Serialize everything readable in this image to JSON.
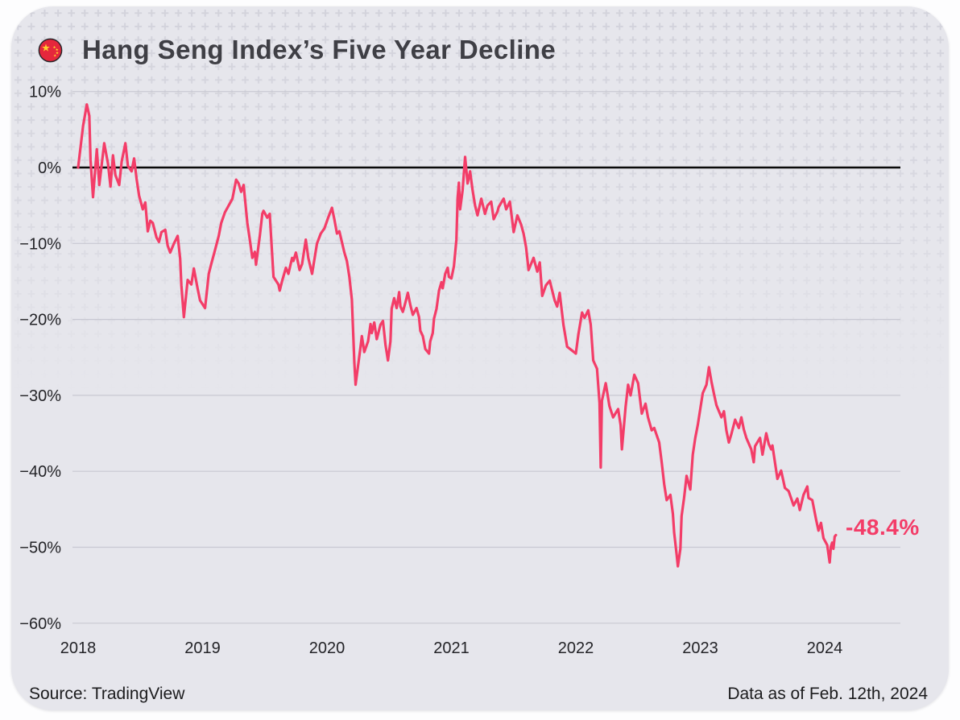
{
  "header": {
    "title": "Hang Seng Index’s Five Year Decline",
    "flag_icon": "china-flag"
  },
  "footer": {
    "source": "Source: TradingView",
    "as_of": "Data as of Feb. 12th, 2024"
  },
  "colors": {
    "line": "#f33d68",
    "zero_line": "#0a0a0a",
    "gridline": "#c8c8d2",
    "card_bg": "#e6e6ec",
    "pattern_cross": "#d2d2db",
    "title_text": "#3f3f45",
    "tick_text": "#232327",
    "flag_red": "#e5273c",
    "flag_gold": "#ffd12e"
  },
  "chart_data": {
    "type": "line",
    "title": "Hang Seng Index’s Five Year Decline",
    "xlim": [
      2017.94,
      2024.62
    ],
    "ylim": [
      -60,
      10
    ],
    "grid": true,
    "zero_line": true,
    "legend": "none",
    "end_label": "-48.4%",
    "yticks": [
      {
        "label": "10%",
        "value": 10
      },
      {
        "label": "0%",
        "value": 0
      },
      {
        "label": "−10%",
        "value": -10
      },
      {
        "label": "−20%",
        "value": -20
      },
      {
        "label": "−30%",
        "value": -30
      },
      {
        "label": "−40%",
        "value": -40
      },
      {
        "label": "−50%",
        "value": -50
      },
      {
        "label": "−60%",
        "value": -60
      }
    ],
    "xticks": [
      {
        "label": "2018",
        "value": 2018
      },
      {
        "label": "2019",
        "value": 2019
      },
      {
        "label": "2020",
        "value": 2020
      },
      {
        "label": "2021",
        "value": 2021
      },
      {
        "label": "2022",
        "value": 2022
      },
      {
        "label": "2023",
        "value": 2023
      },
      {
        "label": "2024",
        "value": 2024
      }
    ],
    "series": [
      {
        "name": "Hang Seng Index",
        "unit": "%",
        "points": [
          [
            2018.0,
            0.0
          ],
          [
            2018.04,
            5.5
          ],
          [
            2018.07,
            8.3
          ],
          [
            2018.09,
            6.8
          ],
          [
            2018.1,
            1.0
          ],
          [
            2018.12,
            -3.9
          ],
          [
            2018.15,
            2.4
          ],
          [
            2018.17,
            -2.3
          ],
          [
            2018.21,
            3.2
          ],
          [
            2018.24,
            0.5
          ],
          [
            2018.26,
            -2.5
          ],
          [
            2018.28,
            1.6
          ],
          [
            2018.3,
            -1.0
          ],
          [
            2018.33,
            -2.3
          ],
          [
            2018.35,
            0.8
          ],
          [
            2018.38,
            3.2
          ],
          [
            2018.4,
            0.2
          ],
          [
            2018.43,
            -0.5
          ],
          [
            2018.45,
            1.2
          ],
          [
            2018.47,
            -1.5
          ],
          [
            2018.49,
            -3.7
          ],
          [
            2018.52,
            -5.5
          ],
          [
            2018.54,
            -4.6
          ],
          [
            2018.56,
            -8.4
          ],
          [
            2018.58,
            -7.0
          ],
          [
            2018.6,
            -7.3
          ],
          [
            2018.63,
            -9.2
          ],
          [
            2018.65,
            -9.8
          ],
          [
            2018.67,
            -8.5
          ],
          [
            2018.7,
            -8.2
          ],
          [
            2018.72,
            -10.3
          ],
          [
            2018.74,
            -11.2
          ],
          [
            2018.77,
            -10.0
          ],
          [
            2018.8,
            -9.0
          ],
          [
            2018.82,
            -12.0
          ],
          [
            2018.83,
            -15.5
          ],
          [
            2018.85,
            -19.7
          ],
          [
            2018.88,
            -14.8
          ],
          [
            2018.91,
            -15.4
          ],
          [
            2018.93,
            -13.3
          ],
          [
            2018.96,
            -15.9
          ],
          [
            2018.98,
            -17.5
          ],
          [
            2019.02,
            -18.5
          ],
          [
            2019.04,
            -15.5
          ],
          [
            2019.05,
            -14.0
          ],
          [
            2019.07,
            -12.7
          ],
          [
            2019.1,
            -10.9
          ],
          [
            2019.13,
            -9.0
          ],
          [
            2019.15,
            -7.3
          ],
          [
            2019.18,
            -5.9
          ],
          [
            2019.2,
            -5.3
          ],
          [
            2019.24,
            -4.1
          ],
          [
            2019.27,
            -1.6
          ],
          [
            2019.29,
            -2.1
          ],
          [
            2019.31,
            -3.2
          ],
          [
            2019.33,
            -2.3
          ],
          [
            2019.36,
            -7.3
          ],
          [
            2019.38,
            -9.5
          ],
          [
            2019.4,
            -11.9
          ],
          [
            2019.42,
            -11.1
          ],
          [
            2019.43,
            -12.8
          ],
          [
            2019.46,
            -9.0
          ],
          [
            2019.48,
            -6.1
          ],
          [
            2019.49,
            -5.7
          ],
          [
            2019.52,
            -6.6
          ],
          [
            2019.54,
            -6.1
          ],
          [
            2019.57,
            -14.4
          ],
          [
            2019.61,
            -15.4
          ],
          [
            2019.62,
            -16.2
          ],
          [
            2019.64,
            -14.9
          ],
          [
            2019.67,
            -13.2
          ],
          [
            2019.69,
            -14.0
          ],
          [
            2019.72,
            -11.9
          ],
          [
            2019.73,
            -12.3
          ],
          [
            2019.75,
            -11.2
          ],
          [
            2019.78,
            -13.5
          ],
          [
            2019.8,
            -12.7
          ],
          [
            2019.83,
            -9.5
          ],
          [
            2019.85,
            -11.9
          ],
          [
            2019.88,
            -14.0
          ],
          [
            2019.92,
            -10.0
          ],
          [
            2019.95,
            -8.7
          ],
          [
            2019.98,
            -8.0
          ],
          [
            2020.01,
            -6.6
          ],
          [
            2020.04,
            -5.3
          ],
          [
            2020.06,
            -6.9
          ],
          [
            2020.08,
            -8.7
          ],
          [
            2020.1,
            -8.4
          ],
          [
            2020.14,
            -11.2
          ],
          [
            2020.16,
            -12.3
          ],
          [
            2020.18,
            -14.4
          ],
          [
            2020.2,
            -17.4
          ],
          [
            2020.22,
            -25.7
          ],
          [
            2020.23,
            -28.6
          ],
          [
            2020.27,
            -23.6
          ],
          [
            2020.28,
            -22.2
          ],
          [
            2020.3,
            -24.3
          ],
          [
            2020.33,
            -22.9
          ],
          [
            2020.35,
            -20.6
          ],
          [
            2020.36,
            -21.8
          ],
          [
            2020.38,
            -20.4
          ],
          [
            2020.4,
            -22.6
          ],
          [
            2020.43,
            -20.7
          ],
          [
            2020.45,
            -20.2
          ],
          [
            2020.47,
            -23.3
          ],
          [
            2020.49,
            -25.4
          ],
          [
            2020.51,
            -22.9
          ],
          [
            2020.52,
            -18.6
          ],
          [
            2020.54,
            -17.2
          ],
          [
            2020.56,
            -18.5
          ],
          [
            2020.58,
            -16.4
          ],
          [
            2020.59,
            -18.3
          ],
          [
            2020.61,
            -19.0
          ],
          [
            2020.63,
            -17.8
          ],
          [
            2020.65,
            -16.5
          ],
          [
            2020.67,
            -18.1
          ],
          [
            2020.69,
            -19.4
          ],
          [
            2020.72,
            -18.5
          ],
          [
            2020.74,
            -19.7
          ],
          [
            2020.75,
            -21.5
          ],
          [
            2020.77,
            -22.2
          ],
          [
            2020.79,
            -23.9
          ],
          [
            2020.82,
            -24.5
          ],
          [
            2020.83,
            -22.9
          ],
          [
            2020.85,
            -21.8
          ],
          [
            2020.86,
            -19.9
          ],
          [
            2020.88,
            -18.6
          ],
          [
            2020.9,
            -16.2
          ],
          [
            2020.92,
            -15.1
          ],
          [
            2020.93,
            -15.9
          ],
          [
            2020.95,
            -14.0
          ],
          [
            2020.97,
            -13.2
          ],
          [
            2020.98,
            -14.4
          ],
          [
            2021.0,
            -14.6
          ],
          [
            2021.02,
            -13.0
          ],
          [
            2021.04,
            -9.5
          ],
          [
            2021.05,
            -4.0
          ],
          [
            2021.06,
            -2.0
          ],
          [
            2021.07,
            -5.5
          ],
          [
            2021.09,
            -3.0
          ],
          [
            2021.11,
            1.4
          ],
          [
            2021.13,
            -2.1
          ],
          [
            2021.15,
            -0.5
          ],
          [
            2021.17,
            -3.0
          ],
          [
            2021.19,
            -5.0
          ],
          [
            2021.21,
            -6.3
          ],
          [
            2021.24,
            -4.1
          ],
          [
            2021.27,
            -6.1
          ],
          [
            2021.29,
            -5.0
          ],
          [
            2021.32,
            -4.5
          ],
          [
            2021.34,
            -6.8
          ],
          [
            2021.37,
            -5.8
          ],
          [
            2021.38,
            -5.2
          ],
          [
            2021.42,
            -4.1
          ],
          [
            2021.44,
            -5.5
          ],
          [
            2021.47,
            -4.5
          ],
          [
            2021.5,
            -8.5
          ],
          [
            2021.53,
            -6.3
          ],
          [
            2021.56,
            -7.5
          ],
          [
            2021.58,
            -8.7
          ],
          [
            2021.6,
            -10.5
          ],
          [
            2021.62,
            -13.5
          ],
          [
            2021.66,
            -11.9
          ],
          [
            2021.69,
            -13.7
          ],
          [
            2021.71,
            -12.5
          ],
          [
            2021.73,
            -16.9
          ],
          [
            2021.76,
            -15.5
          ],
          [
            2021.79,
            -14.9
          ],
          [
            2021.83,
            -17.5
          ],
          [
            2021.85,
            -18.3
          ],
          [
            2021.87,
            -16.5
          ],
          [
            2021.9,
            -20.7
          ],
          [
            2021.93,
            -23.6
          ],
          [
            2021.97,
            -24.1
          ],
          [
            2022.0,
            -24.5
          ],
          [
            2022.02,
            -22.0
          ],
          [
            2022.05,
            -19.1
          ],
          [
            2022.07,
            -19.8
          ],
          [
            2022.1,
            -18.8
          ],
          [
            2022.12,
            -20.7
          ],
          [
            2022.14,
            -25.4
          ],
          [
            2022.17,
            -26.5
          ],
          [
            2022.19,
            -31.0
          ],
          [
            2022.2,
            -39.5
          ],
          [
            2022.21,
            -30.7
          ],
          [
            2022.24,
            -28.4
          ],
          [
            2022.27,
            -31.4
          ],
          [
            2022.3,
            -32.9
          ],
          [
            2022.34,
            -31.8
          ],
          [
            2022.36,
            -33.9
          ],
          [
            2022.37,
            -37.1
          ],
          [
            2022.4,
            -31.5
          ],
          [
            2022.42,
            -28.6
          ],
          [
            2022.44,
            -30.0
          ],
          [
            2022.47,
            -27.3
          ],
          [
            2022.5,
            -28.4
          ],
          [
            2022.53,
            -32.4
          ],
          [
            2022.56,
            -31.1
          ],
          [
            2022.58,
            -32.9
          ],
          [
            2022.61,
            -34.6
          ],
          [
            2022.63,
            -34.3
          ],
          [
            2022.67,
            -36.2
          ],
          [
            2022.69,
            -38.8
          ],
          [
            2022.71,
            -41.7
          ],
          [
            2022.73,
            -43.8
          ],
          [
            2022.76,
            -43.1
          ],
          [
            2022.78,
            -45.6
          ],
          [
            2022.79,
            -48.1
          ],
          [
            2022.81,
            -50.9
          ],
          [
            2022.82,
            -52.5
          ],
          [
            2022.84,
            -50.2
          ],
          [
            2022.85,
            -45.9
          ],
          [
            2022.87,
            -43.5
          ],
          [
            2022.89,
            -40.6
          ],
          [
            2022.92,
            -42.4
          ],
          [
            2022.94,
            -37.8
          ],
          [
            2022.96,
            -35.6
          ],
          [
            2022.98,
            -33.9
          ],
          [
            2023.0,
            -31.8
          ],
          [
            2023.02,
            -29.7
          ],
          [
            2023.05,
            -28.6
          ],
          [
            2023.07,
            -26.3
          ],
          [
            2023.09,
            -28.2
          ],
          [
            2023.11,
            -29.8
          ],
          [
            2023.13,
            -31.3
          ],
          [
            2023.17,
            -32.9
          ],
          [
            2023.19,
            -32.1
          ],
          [
            2023.21,
            -34.6
          ],
          [
            2023.23,
            -36.2
          ],
          [
            2023.25,
            -35.1
          ],
          [
            2023.28,
            -33.2
          ],
          [
            2023.31,
            -34.3
          ],
          [
            2023.33,
            -32.9
          ],
          [
            2023.35,
            -34.5
          ],
          [
            2023.37,
            -35.6
          ],
          [
            2023.41,
            -37.1
          ],
          [
            2023.43,
            -38.8
          ],
          [
            2023.44,
            -36.7
          ],
          [
            2023.48,
            -35.6
          ],
          [
            2023.5,
            -37.8
          ],
          [
            2023.53,
            -35.0
          ],
          [
            2023.55,
            -36.4
          ],
          [
            2023.57,
            -37.1
          ],
          [
            2023.58,
            -36.6
          ],
          [
            2023.62,
            -41.0
          ],
          [
            2023.65,
            -39.9
          ],
          [
            2023.68,
            -42.2
          ],
          [
            2023.71,
            -42.6
          ],
          [
            2023.75,
            -44.5
          ],
          [
            2023.78,
            -43.6
          ],
          [
            2023.8,
            -45.1
          ],
          [
            2023.83,
            -43.1
          ],
          [
            2023.86,
            -42.0
          ],
          [
            2023.87,
            -43.5
          ],
          [
            2023.9,
            -43.8
          ],
          [
            2023.93,
            -46.3
          ],
          [
            2023.95,
            -47.8
          ],
          [
            2023.97,
            -46.8
          ],
          [
            2023.99,
            -48.8
          ],
          [
            2024.02,
            -49.7
          ],
          [
            2024.04,
            -52.0
          ],
          [
            2024.05,
            -49.9
          ],
          [
            2024.06,
            -49.4
          ],
          [
            2024.07,
            -50.2
          ],
          [
            2024.08,
            -48.6
          ],
          [
            2024.09,
            -48.4
          ]
        ]
      }
    ]
  }
}
